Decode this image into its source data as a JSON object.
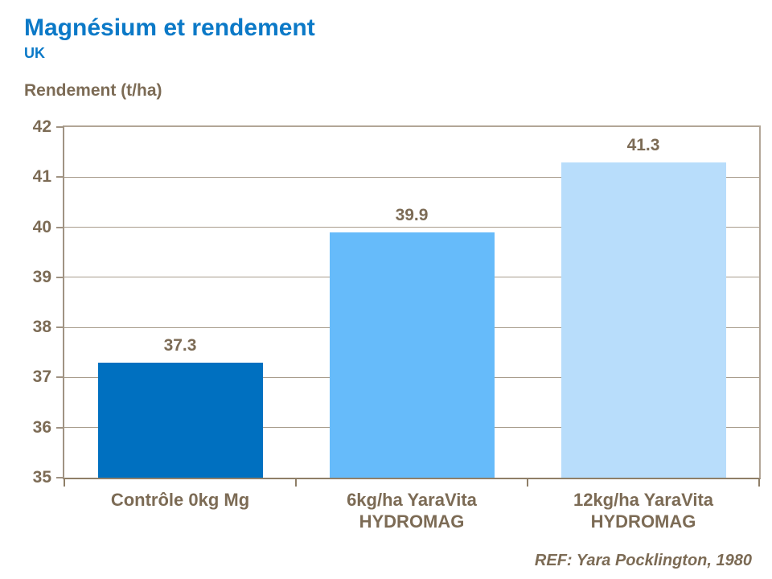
{
  "header": {
    "title": "Magnésium et rendement",
    "subtitle": "UK"
  },
  "footer": {
    "reference": "REF: Yara Pocklington, 1980"
  },
  "chart_data": {
    "type": "bar",
    "title": "Magnésium et rendement",
    "subtitle": "UK",
    "ylabel": "Rendement (t/ha)",
    "xlabel": "",
    "categories": [
      "Contrôle 0kg Mg",
      "6kg/ha YaraVita\nHYDROMAG",
      "12kg/ha YaraVita\nHYDROMAG"
    ],
    "values": [
      37.3,
      39.9,
      41.3
    ],
    "data_labels": [
      "37.3",
      "39.9",
      "41.3"
    ],
    "ylim": [
      35,
      42
    ],
    "yticks": [
      35,
      36,
      37,
      38,
      39,
      40,
      41,
      42
    ],
    "grid": true,
    "legend": false,
    "annotation": "REF: Yara Pocklington, 1980",
    "colors": {
      "bars": [
        "#0070c0",
        "#66bbfa",
        "#b8ddfb"
      ],
      "title_blue": "#0b79c7",
      "text_brown": "#7c6b55",
      "gridline": "#a89c8c",
      "plot_border": "#b2a697",
      "axis_left": "#a09383",
      "axis_bottom": "#8f7f68"
    }
  }
}
